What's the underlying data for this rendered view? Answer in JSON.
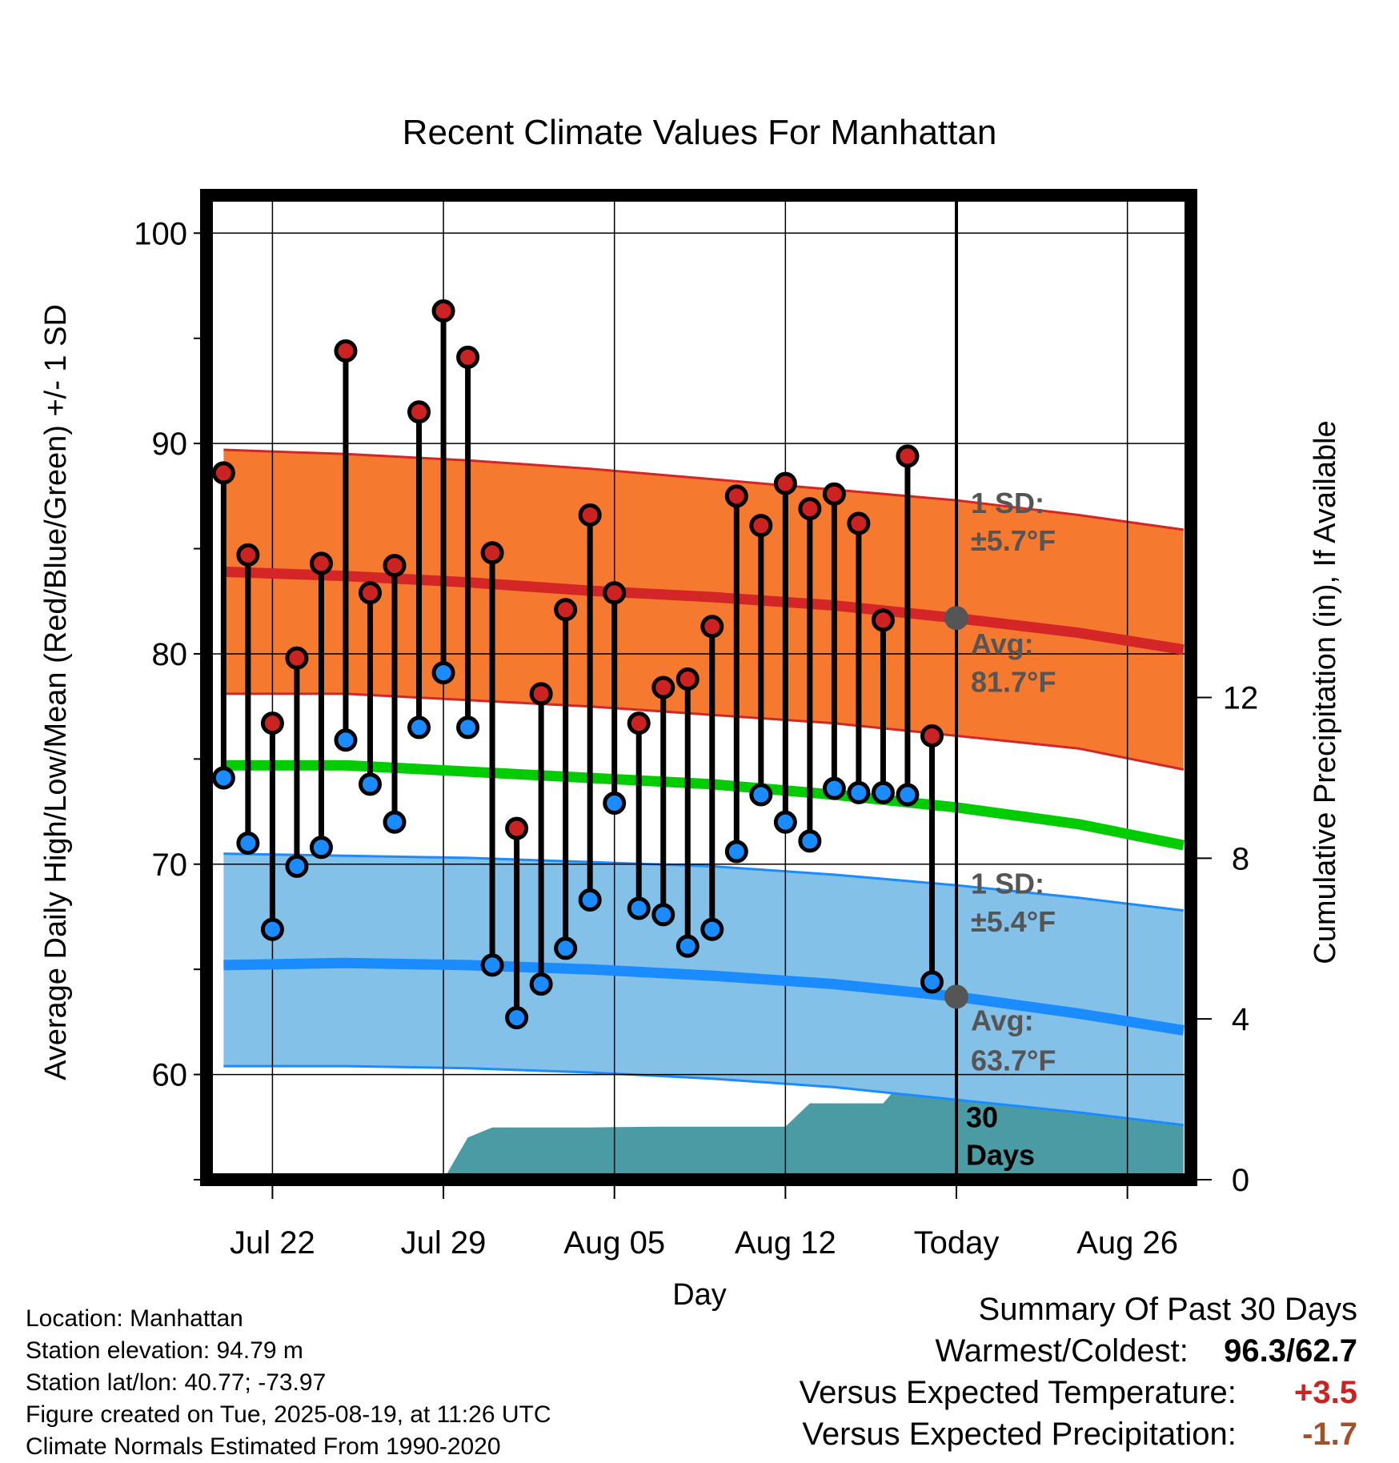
{
  "chart_data": {
    "type": "line",
    "title": "Recent Climate Values For Manhattan",
    "xlabel": "Day",
    "ylabel": "Average Daily High/Low/Mean (Red/Blue/Green) +/- 1 SD",
    "y2label": "Cumulative Precipitation (in), If Available",
    "ylim": [
      55,
      101.8
    ],
    "y2lim": [
      0,
      24.5
    ],
    "y_ticks": [
      60,
      70,
      80,
      90,
      100
    ],
    "y2_ticks": [
      0,
      4,
      8,
      12
    ],
    "x_tick_labels": [
      {
        "label": "Jul 22",
        "day": 2
      },
      {
        "label": "Jul 29",
        "day": 9
      },
      {
        "label": "Aug 05",
        "day": 16
      },
      {
        "label": "Aug 12",
        "day": 23
      },
      {
        "label": "Today",
        "day": 30
      },
      {
        "label": "Aug 26",
        "day": 37
      }
    ],
    "xlim": [
      -0.7,
      39.6
    ],
    "today_day": 30,
    "normals": {
      "days": [
        0,
        5,
        10,
        15,
        20,
        25,
        30,
        35,
        39.3
      ],
      "high_avg": [
        83.9,
        83.7,
        83.4,
        83.0,
        82.7,
        82.3,
        81.7,
        81.0,
        80.2
      ],
      "high_sd_upper": [
        89.7,
        89.5,
        89.2,
        88.8,
        88.3,
        87.8,
        87.3,
        86.6,
        85.9
      ],
      "high_sd_lower": [
        78.1,
        78.1,
        77.8,
        77.5,
        77.1,
        76.7,
        76.1,
        75.5,
        74.5
      ],
      "mean_avg": [
        74.7,
        74.7,
        74.4,
        74.1,
        73.8,
        73.3,
        72.7,
        71.9,
        70.9
      ],
      "low_avg": [
        65.2,
        65.3,
        65.2,
        65.0,
        64.7,
        64.3,
        63.7,
        62.9,
        62.1
      ],
      "low_sd_upper": [
        70.5,
        70.4,
        70.3,
        70.1,
        69.9,
        69.5,
        69.0,
        68.4,
        67.8
      ],
      "low_sd_lower": [
        60.4,
        60.4,
        60.3,
        60.1,
        59.8,
        59.4,
        58.8,
        58.2,
        57.6
      ]
    },
    "series": [
      {
        "name": "High",
        "color": "#cc2222",
        "values": [
          88.6,
          84.7,
          76.7,
          79.8,
          84.3,
          94.4,
          82.9,
          84.2,
          91.5,
          96.3,
          94.1,
          84.8,
          71.7,
          78.1,
          82.1,
          86.6,
          82.9,
          76.7,
          78.4,
          78.8,
          81.3,
          87.5,
          86.1,
          88.1,
          86.9,
          87.6,
          86.2,
          81.6,
          89.4,
          76.1
        ]
      },
      {
        "name": "Low",
        "color": "#1a8cff",
        "values": [
          74.1,
          71.0,
          66.9,
          69.9,
          70.8,
          75.9,
          73.8,
          72.0,
          76.5,
          79.1,
          76.5,
          65.2,
          62.7,
          64.3,
          66.0,
          68.3,
          72.9,
          67.9,
          67.6,
          66.1,
          66.9,
          70.6,
          73.3,
          72.0,
          71.1,
          73.6,
          73.4,
          73.4,
          73.3,
          64.4
        ]
      }
    ],
    "precip_cumulative": {
      "days": [
        9,
        10,
        11,
        12,
        15,
        18,
        23,
        24,
        27,
        28,
        30,
        39.3
      ],
      "values": [
        0,
        1.05,
        1.3,
        1.3,
        1.3,
        1.32,
        1.32,
        1.9,
        1.9,
        2.6,
        2.6,
        2.6
      ]
    },
    "annotations": {
      "high_sd": [
        "1 SD:",
        "±5.7°F"
      ],
      "high_avg": [
        "Avg:",
        "81.7°F"
      ],
      "low_sd": [
        "1 SD:",
        "±5.4°F"
      ],
      "low_avg": [
        "Avg:",
        "63.7°F"
      ],
      "window": [
        "30",
        "Days"
      ]
    },
    "colors": {
      "high_band": "#f57a2f",
      "high_line": "#d42626",
      "mean_line": "#00cc00",
      "low_band": "#83c1e8",
      "low_line": "#1a8cff",
      "precip": "#4a9ba4",
      "high_marker": "#cc2222",
      "low_marker": "#1a8cff",
      "today_marker": "#555555"
    }
  },
  "footer": {
    "location": "Location: Manhattan",
    "elevation": "Station elevation: 94.79 m",
    "latlon": "Station lat/lon: 40.77; -73.97",
    "created": "Figure created on Tue, 2025-08-19, at 11:26 UTC",
    "normals": "Climate Normals Estimated From 1990-2020"
  },
  "summary": {
    "heading": "Summary Of Past 30 Days",
    "warmest_label": "Warmest/Coldest:",
    "warmest_value": "96.3/62.7",
    "temp_label": "Versus Expected Temperature:",
    "temp_value": "+3.5",
    "temp_color": "#cc2222",
    "precip_label": "Versus Expected Precipitation:",
    "precip_value": "-1.7",
    "precip_color": "#a0522d"
  }
}
